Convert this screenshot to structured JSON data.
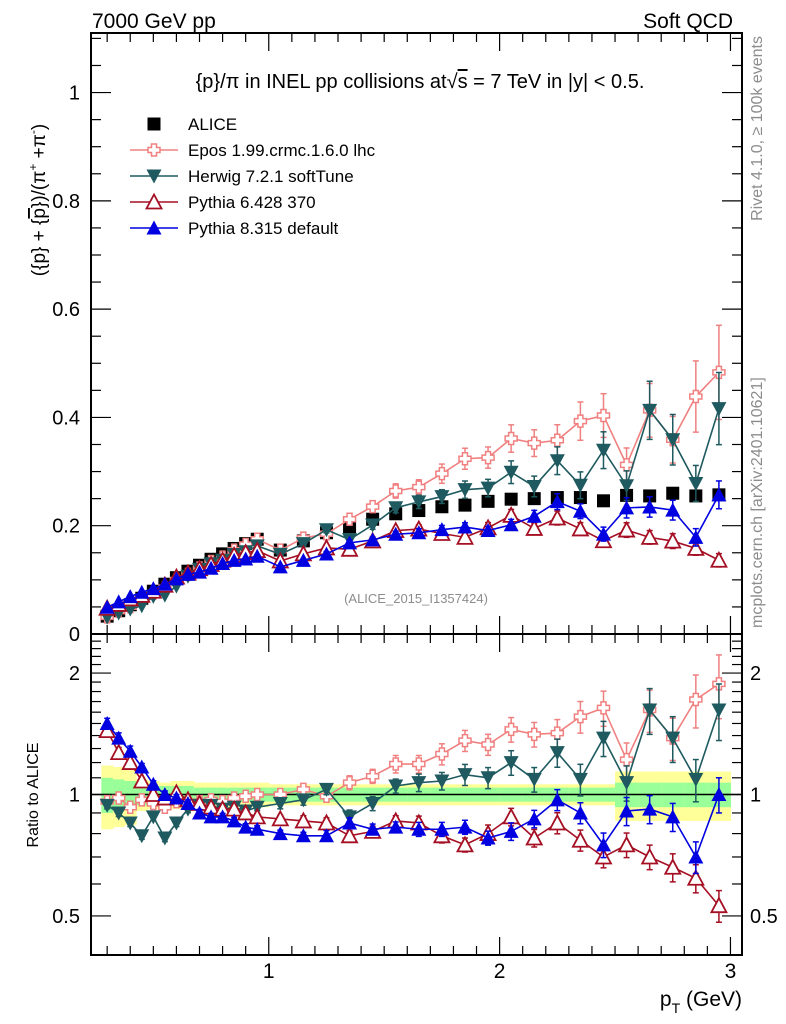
{
  "header": {
    "left": "7000 GeV pp",
    "right": "Soft QCD"
  },
  "side_labels": {
    "rivet": "Rivet 4.1.0, ≥ 100k events",
    "mcplots": "mcplots.cern.ch [arXiv:2401.10621]"
  },
  "reference": "(ALICE_2015_I1357424)",
  "chart_data": {
    "type": "scatter",
    "title": "{p}/π in INEL pp collisions at√s =  7 TeV in |y| < 0.5.",
    "xlabel": "p_T (GeV)",
    "ylabel": "({p} + {p̄})/(π⁺ +π⁻)",
    "ratio_ylabel": "Ratio to ALICE",
    "xlim": [
      0.23,
      3.05
    ],
    "ylim": [
      0,
      1.11
    ],
    "ratio_ylim": [
      0.4,
      2.5
    ],
    "ratio_scale": "log",
    "x_ticks": [
      1,
      2,
      3
    ],
    "y_ticks": [
      0,
      0.2,
      0.4,
      0.6,
      0.8,
      1
    ],
    "y_tick_labels": [
      "0",
      "0.2",
      "0.4",
      "0.6",
      "0.8",
      "1"
    ],
    "ratio_ticks": [
      0.5,
      1,
      2
    ],
    "ratio_tick_labels": [
      "0.5",
      "1",
      "2"
    ],
    "legend_position": "top-left",
    "x": [
      0.3,
      0.35,
      0.4,
      0.45,
      0.5,
      0.55,
      0.6,
      0.65,
      0.7,
      0.75,
      0.8,
      0.85,
      0.9,
      0.95,
      1.05,
      1.15,
      1.25,
      1.35,
      1.45,
      1.55,
      1.65,
      1.75,
      1.85,
      1.95,
      2.05,
      2.15,
      2.25,
      2.35,
      2.45,
      2.55,
      2.65,
      2.75,
      2.85,
      2.95
    ],
    "reference": {
      "name": "ALICE",
      "color": "#000000",
      "values": [
        0.033,
        0.043,
        0.054,
        0.066,
        0.079,
        0.092,
        0.104,
        0.116,
        0.127,
        0.138,
        0.148,
        0.158,
        0.167,
        0.175,
        0.155,
        0.172,
        0.187,
        0.198,
        0.212,
        0.222,
        0.228,
        0.235,
        0.238,
        0.245,
        0.249,
        0.25,
        0.252,
        0.252,
        0.246,
        0.256,
        0.255,
        0.26,
        0.255,
        0.257
      ],
      "band_stat": [
        0.1,
        0.09,
        0.08,
        0.06,
        0.05,
        0.05,
        0.05,
        0.05,
        0.04,
        0.04,
        0.04,
        0.04,
        0.04,
        0.04,
        0.04,
        0.04,
        0.04,
        0.04,
        0.04,
        0.04,
        0.04,
        0.04,
        0.04,
        0.04,
        0.04,
        0.04,
        0.04,
        0.04,
        0.04,
        0.07,
        0.07,
        0.07,
        0.07,
        0.07
      ],
      "band_total": [
        0.18,
        0.17,
        0.16,
        0.09,
        0.08,
        0.07,
        0.08,
        0.08,
        0.07,
        0.07,
        0.07,
        0.07,
        0.07,
        0.07,
        0.06,
        0.06,
        0.06,
        0.06,
        0.06,
        0.06,
        0.06,
        0.06,
        0.06,
        0.06,
        0.06,
        0.06,
        0.06,
        0.06,
        0.06,
        0.14,
        0.14,
        0.14,
        0.14,
        0.14
      ]
    },
    "series": [
      {
        "name": "Epos 1.99.crmc.1.6.0 lhc",
        "color": "#f08080",
        "marker": "open-cross",
        "ratio": [
          0.96,
          0.98,
          0.93,
          0.97,
          0.95,
          0.93,
          0.96,
          0.95,
          0.96,
          0.97,
          0.96,
          0.98,
          0.99,
          1.0,
          1.0,
          1.03,
          0.99,
          1.07,
          1.11,
          1.19,
          1.19,
          1.26,
          1.36,
          1.33,
          1.45,
          1.41,
          1.42,
          1.56,
          1.64,
          1.22,
          1.62,
          1.38,
          1.72,
          1.88
        ],
        "err": [
          0.02,
          0.02,
          0.02,
          0.02,
          0.02,
          0.02,
          0.02,
          0.02,
          0.02,
          0.02,
          0.02,
          0.02,
          0.02,
          0.02,
          0.03,
          0.03,
          0.03,
          0.04,
          0.04,
          0.05,
          0.05,
          0.06,
          0.06,
          0.06,
          0.07,
          0.07,
          0.08,
          0.09,
          0.1,
          0.1,
          0.12,
          0.12,
          0.15,
          0.18
        ]
      },
      {
        "name": "Herwig 7.2.1 softTune",
        "color": "#1e5a5f",
        "marker": "filled-triangle-down",
        "ratio": [
          0.94,
          0.9,
          0.85,
          0.79,
          0.88,
          0.78,
          0.85,
          0.92,
          0.94,
          0.94,
          0.92,
          0.93,
          0.91,
          0.93,
          0.95,
          0.97,
          1.03,
          0.88,
          0.95,
          1.05,
          1.07,
          1.08,
          1.12,
          1.1,
          1.2,
          1.09,
          1.27,
          1.09,
          1.38,
          1.07,
          1.62,
          1.38,
          1.09,
          1.62
        ],
        "err": [
          0.02,
          0.02,
          0.02,
          0.02,
          0.02,
          0.02,
          0.02,
          0.02,
          0.02,
          0.02,
          0.02,
          0.02,
          0.02,
          0.02,
          0.03,
          0.03,
          0.03,
          0.04,
          0.04,
          0.04,
          0.05,
          0.05,
          0.06,
          0.06,
          0.07,
          0.07,
          0.08,
          0.09,
          0.1,
          0.1,
          0.13,
          0.13,
          0.12,
          0.16
        ]
      },
      {
        "name": "Pythia 6.428 370",
        "color": "#a50f23",
        "marker": "open-triangle-up",
        "ratio": [
          1.44,
          1.27,
          1.2,
          1.08,
          1.0,
          0.98,
          1.01,
          0.97,
          0.95,
          0.93,
          0.92,
          0.92,
          0.9,
          0.88,
          0.87,
          0.86,
          0.85,
          0.79,
          0.81,
          0.86,
          0.85,
          0.79,
          0.75,
          0.8,
          0.88,
          0.78,
          0.85,
          0.77,
          0.7,
          0.75,
          0.7,
          0.66,
          0.62,
          0.53
        ],
        "err": [
          0.03,
          0.03,
          0.03,
          0.02,
          0.02,
          0.02,
          0.02,
          0.02,
          0.02,
          0.02,
          0.02,
          0.02,
          0.02,
          0.02,
          0.02,
          0.03,
          0.03,
          0.03,
          0.03,
          0.03,
          0.04,
          0.04,
          0.04,
          0.05,
          0.05,
          0.05,
          0.06,
          0.06,
          0.06,
          0.07,
          0.07,
          0.08,
          0.08,
          0.09
        ]
      },
      {
        "name": "Pythia 8.315 default",
        "color": "#0000e0",
        "marker": "filled-triangle-up",
        "ratio": [
          1.5,
          1.38,
          1.28,
          1.17,
          1.06,
          1.0,
          0.98,
          0.95,
          0.9,
          0.88,
          0.88,
          0.86,
          0.83,
          0.82,
          0.8,
          0.79,
          0.79,
          0.85,
          0.82,
          0.83,
          0.82,
          0.82,
          0.83,
          0.78,
          0.81,
          0.87,
          0.97,
          0.9,
          0.75,
          0.91,
          0.92,
          0.88,
          0.7,
          1.0
        ],
        "err": [
          0.03,
          0.03,
          0.03,
          0.02,
          0.02,
          0.02,
          0.02,
          0.02,
          0.02,
          0.02,
          0.02,
          0.02,
          0.02,
          0.02,
          0.02,
          0.02,
          0.03,
          0.03,
          0.03,
          0.03,
          0.04,
          0.04,
          0.04,
          0.04,
          0.05,
          0.05,
          0.06,
          0.06,
          0.07,
          0.08,
          0.08,
          0.08,
          0.09,
          0.1
        ]
      }
    ]
  }
}
